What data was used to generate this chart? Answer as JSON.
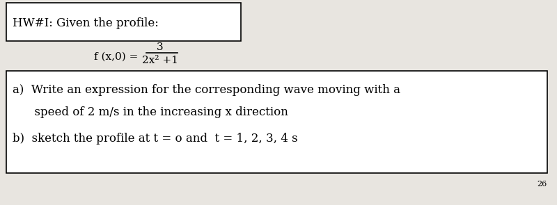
{
  "background_color": "#e8e5e0",
  "title_box_text": "HW#I: Given the profile:",
  "formula_numerator": "3",
  "formula_denominator": "2x² +1",
  "formula_prefix": "f (x,0) =",
  "part_a_line1": "a)  Write an expression for the corresponding wave moving with a",
  "part_a_line2": "      speed of 2 m/s in the increasing x direction",
  "part_b": "b)  sketch the profile at t = o and  t = 1, 2, 3, 4 s",
  "page_number": "26",
  "title_fontsize": 12,
  "formula_fontsize": 11,
  "body_fontsize": 12,
  "page_num_fontsize": 8,
  "font_family": "DejaVu Serif"
}
